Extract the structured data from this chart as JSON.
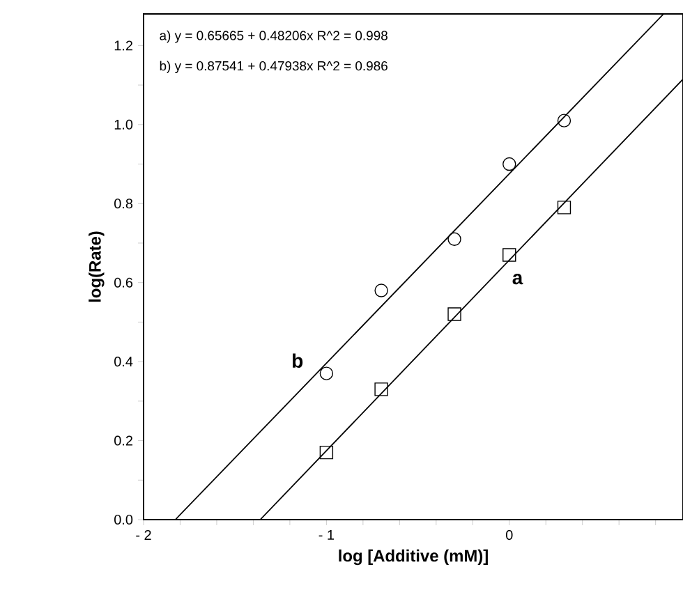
{
  "chart_data": {
    "type": "scatter",
    "xlabel": "log [Additive (mM)]",
    "ylabel": "log(Rate)",
    "xlim": [
      -2,
      0.95
    ],
    "ylim": [
      0,
      1.28
    ],
    "xticks": [
      {
        "value": -2,
        "label": "- 2"
      },
      {
        "value": -1.8,
        "label": null
      },
      {
        "value": -1.6,
        "label": null
      },
      {
        "value": -1.4,
        "label": null
      },
      {
        "value": -1.2,
        "label": null
      },
      {
        "value": -1,
        "label": "- 1"
      },
      {
        "value": -0.8,
        "label": null
      },
      {
        "value": -0.6,
        "label": null
      },
      {
        "value": -0.4,
        "label": null
      },
      {
        "value": -0.2,
        "label": null
      },
      0,
      {
        "value": 0.2,
        "label": null
      },
      {
        "value": 0.4,
        "label": null
      },
      {
        "value": 0.6,
        "label": null
      },
      {
        "value": 0.8,
        "label": null
      }
    ],
    "yticks": [
      {
        "value": 0,
        "label": "0.0"
      },
      {
        "value": 0.1,
        "label": null
      },
      {
        "value": 0.2,
        "label": "0.2"
      },
      {
        "value": 0.3,
        "label": null
      },
      {
        "value": 0.4,
        "label": "0.4"
      },
      {
        "value": 0.5,
        "label": null
      },
      {
        "value": 0.6,
        "label": "0.6"
      },
      {
        "value": 0.7,
        "label": null
      },
      {
        "value": 0.8,
        "label": "0.8"
      },
      {
        "value": 0.9,
        "label": null
      },
      {
        "value": 1,
        "label": "1.0"
      },
      {
        "value": 1.1,
        "label": null
      },
      {
        "value": 1.2,
        "label": "1.2"
      }
    ],
    "series": [
      {
        "marker": "square",
        "color": "#000000",
        "x": [
          -1,
          -0.7,
          -0.3,
          0,
          0.3
        ],
        "values": [
          0.17,
          0.33,
          0.52,
          0.67,
          0.79
        ]
      },
      {
        "marker": "circle",
        "color": "#000000",
        "x": [
          -1,
          -0.7,
          -0.3,
          0,
          0.3
        ],
        "values": [
          0.37,
          0.58,
          0.71,
          0.9,
          1.01
        ]
      },
      {
        "type": "line",
        "name": "a",
        "color": "#000000",
        "x": [
          -1.362,
          0.95
        ],
        "values": [
          0,
          1.115
        ]
      },
      {
        "type": "line",
        "name": "b",
        "color": "#000000",
        "x": [
          -1.826,
          0.844
        ],
        "values": [
          0,
          1.28
        ]
      }
    ],
    "annotations": [
      "a)  y = 0.65665 + 0.48206x   R^2 = 0.998",
      "b)  y = 0.87541 + 0.47938x   R^2 = 0.986"
    ],
    "grid": false
  }
}
